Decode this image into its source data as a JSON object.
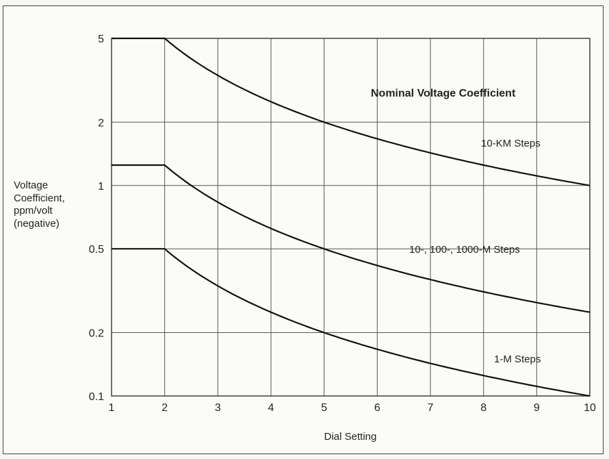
{
  "chart_data": {
    "type": "line",
    "title": "Nominal Voltage Coefficient",
    "xlabel": "Dial Setting",
    "ylabel": [
      "Voltage",
      "Coefficient,",
      "ppm/volt",
      "(negative)"
    ],
    "x_ticks": [
      1,
      2,
      3,
      4,
      5,
      6,
      7,
      8,
      9,
      10
    ],
    "y_ticks": [
      {
        "value": 0.1,
        "label": "0.1"
      },
      {
        "value": 0.2,
        "label": "0.2"
      },
      {
        "value": 0.5,
        "label": "0.5"
      },
      {
        "value": 1,
        "label": "1"
      },
      {
        "value": 2,
        "label": "2"
      },
      {
        "value": 5,
        "label": "5"
      }
    ],
    "xlim": [
      1,
      10
    ],
    "ylim": [
      0.1,
      5
    ],
    "yscale": "log",
    "grid": true,
    "series": [
      {
        "name": "10-KM Steps",
        "x": [
          1,
          2,
          3,
          4,
          5,
          6,
          7,
          8,
          9,
          10
        ],
        "values": [
          5,
          5,
          3.33,
          2.5,
          2,
          1.67,
          1.43,
          1.25,
          1.11,
          1
        ]
      },
      {
        "name": "10-, 100-, 1000-M Steps",
        "x": [
          1,
          2,
          3,
          4,
          5,
          6,
          7,
          8,
          9,
          10
        ],
        "values": [
          1.25,
          1.25,
          0.83,
          0.63,
          0.5,
          0.42,
          0.36,
          0.31,
          0.28,
          0.25
        ]
      },
      {
        "name": "1-M Steps",
        "x": [
          1,
          2,
          3,
          4,
          5,
          6,
          7,
          8,
          9,
          10
        ],
        "values": [
          0.5,
          0.5,
          0.33,
          0.25,
          0.2,
          0.17,
          0.14,
          0.125,
          0.11,
          0.1
        ]
      }
    ]
  }
}
